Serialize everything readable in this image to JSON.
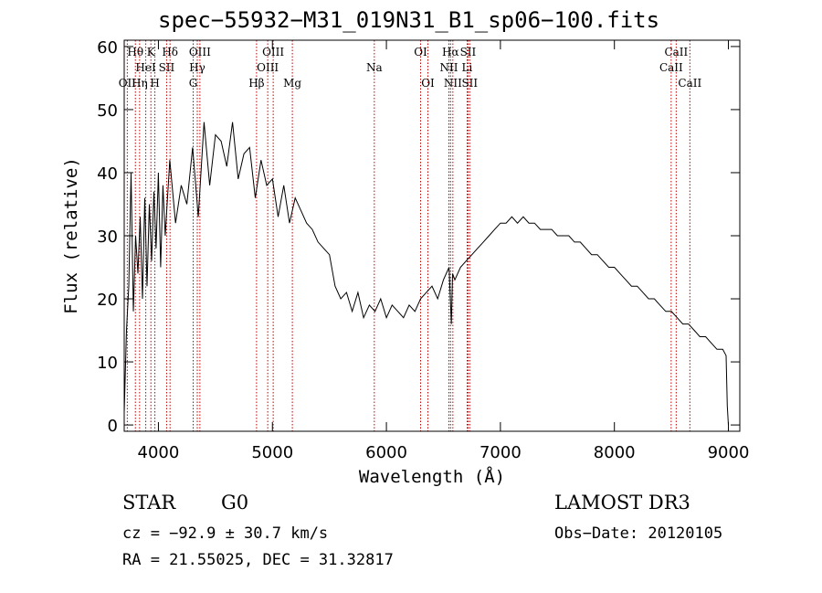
{
  "title": "spec−55932−M31_019N31_B1_sp06−100.fits",
  "info": {
    "class_label": "STAR",
    "subclass": "G0",
    "survey": "LAMOST DR3",
    "cz": "cz = −92.9 ± 30.7 km/s",
    "obs_date": "Obs−Date: 20120105",
    "radec": "RA =  21.55025, DEC =  31.32817"
  },
  "chart_data": {
    "type": "line",
    "title": "spec−55932−M31_019N31_B1_sp06−100.fits",
    "xlabel": "Wavelength (Å)",
    "ylabel": "Flux (relative)",
    "xlim": [
      3700,
      9100
    ],
    "ylim": [
      -1,
      61
    ],
    "xticks": [
      4000,
      5000,
      6000,
      7000,
      8000,
      9000
    ],
    "xtick_labels": [
      "4000",
      "5000",
      "6000",
      "7000",
      "8000",
      "9000"
    ],
    "yticks": [
      0,
      10,
      20,
      30,
      40,
      50,
      60
    ],
    "ytick_labels": [
      "0",
      "10",
      "20",
      "30",
      "40",
      "50",
      "60"
    ],
    "series": [
      {
        "name": "spectrum",
        "x": [
          3700,
          3720,
          3740,
          3760,
          3780,
          3800,
          3820,
          3840,
          3860,
          3880,
          3900,
          3920,
          3940,
          3960,
          3980,
          4000,
          4020,
          4040,
          4060,
          4080,
          4100,
          4150,
          4200,
          4250,
          4300,
          4350,
          4400,
          4450,
          4500,
          4550,
          4600,
          4650,
          4700,
          4750,
          4800,
          4850,
          4900,
          4950,
          5000,
          5050,
          5100,
          5150,
          5200,
          5250,
          5300,
          5350,
          5400,
          5450,
          5500,
          5550,
          5600,
          5650,
          5700,
          5750,
          5800,
          5850,
          5900,
          5950,
          6000,
          6050,
          6100,
          6150,
          6200,
          6250,
          6300,
          6350,
          6400,
          6450,
          6500,
          6550,
          6570,
          6580,
          6600,
          6650,
          6700,
          6750,
          6800,
          6850,
          6900,
          6950,
          7000,
          7050,
          7100,
          7150,
          7200,
          7250,
          7300,
          7350,
          7400,
          7450,
          7500,
          7550,
          7600,
          7650,
          7700,
          7750,
          7800,
          7850,
          7900,
          7950,
          8000,
          8050,
          8100,
          8150,
          8200,
          8250,
          8300,
          8350,
          8400,
          8450,
          8500,
          8550,
          8600,
          8650,
          8700,
          8750,
          8800,
          8850,
          8900,
          8950,
          8980,
          8990,
          9000
        ],
        "y": [
          2,
          15,
          22,
          40,
          18,
          30,
          24,
          33,
          20,
          36,
          22,
          35,
          26,
          37,
          28,
          40,
          25,
          38,
          30,
          36,
          42,
          32,
          38,
          35,
          44,
          33,
          48,
          38,
          46,
          45,
          41,
          48,
          39,
          43,
          44,
          36,
          42,
          38,
          39,
          33,
          38,
          32,
          36,
          34,
          32,
          31,
          29,
          28,
          27,
          22,
          20,
          21,
          18,
          21,
          17,
          19,
          18,
          20,
          17,
          19,
          18,
          17,
          19,
          18,
          20,
          21,
          22,
          20,
          23,
          25,
          16,
          24,
          23,
          25,
          26,
          27,
          28,
          29,
          30,
          31,
          32,
          32,
          33,
          32,
          33,
          32,
          32,
          31,
          31,
          31,
          30,
          30,
          30,
          29,
          29,
          28,
          27,
          27,
          26,
          25,
          25,
          24,
          23,
          22,
          22,
          21,
          20,
          20,
          19,
          18,
          18,
          17,
          16,
          16,
          15,
          14,
          14,
          13,
          12,
          12,
          11,
          3,
          0
        ]
      }
    ],
    "lines": [
      {
        "name": "OII",
        "wl": 3727,
        "row": 3
      },
      {
        "name": "Hθ",
        "wl": 3798,
        "row": 1
      },
      {
        "name": "Hη",
        "wl": 3835,
        "row": 3
      },
      {
        "name": "K",
        "wl": 3934,
        "row": 1
      },
      {
        "name": "H",
        "wl": 3969,
        "row": 3
      },
      {
        "name": "HeI",
        "wl": 3889,
        "row": 2
      },
      {
        "name": "SII",
        "wl": 4072,
        "row": 2
      },
      {
        "name": "Hδ",
        "wl": 4102,
        "row": 1
      },
      {
        "name": "G",
        "wl": 4305,
        "row": 3
      },
      {
        "name": "Hγ",
        "wl": 4341,
        "row": 2
      },
      {
        "name": "OIII",
        "wl": 4364,
        "row": 1
      },
      {
        "name": "Hβ",
        "wl": 4861,
        "row": 3
      },
      {
        "name": "OIII",
        "wl": 4959,
        "row": 2
      },
      {
        "name": "OIII",
        "wl": 5007,
        "row": 1
      },
      {
        "name": "Mg",
        "wl": 5175,
        "row": 3
      },
      {
        "name": "Na",
        "wl": 5894,
        "row": 2
      },
      {
        "name": "OI",
        "wl": 6300,
        "row": 1
      },
      {
        "name": "OI",
        "wl": 6364,
        "row": 3
      },
      {
        "name": "NII",
        "wl": 6548,
        "row": 2
      },
      {
        "name": "Hα",
        "wl": 6563,
        "row": 1
      },
      {
        "name": "NII",
        "wl": 6583,
        "row": 3
      },
      {
        "name": "Li",
        "wl": 6708,
        "row": 2
      },
      {
        "name": "SII",
        "wl": 6716,
        "row": 1
      },
      {
        "name": "SII",
        "wl": 6731,
        "row": 3
      },
      {
        "name": "CaII",
        "wl": 8498,
        "row": 2
      },
      {
        "name": "CaII",
        "wl": 8542,
        "row": 1
      },
      {
        "name": "CaII",
        "wl": 8662,
        "row": 3
      }
    ]
  }
}
